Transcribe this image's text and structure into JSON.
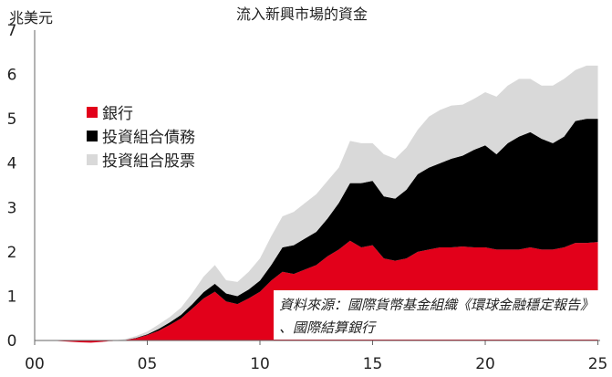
{
  "chart_data": {
    "type": "area",
    "stacked": true,
    "title": "流入新興市場的資金",
    "ylabel": "兆美元",
    "xlabel": "",
    "xlim": [
      2000,
      2025.1
    ],
    "ylim": [
      0,
      7
    ],
    "xticks": [
      2000,
      2005,
      2010,
      2015,
      2020,
      2025
    ],
    "xtick_labels": [
      "00",
      "05",
      "10",
      "15",
      "20",
      "25"
    ],
    "yticks": [
      0,
      1,
      2,
      3,
      4,
      5,
      6,
      7
    ],
    "grid": false,
    "legend_position": "center-left",
    "x": [
      2000,
      2001,
      2002,
      2002.5,
      2003,
      2003.5,
      2004,
      2004.5,
      2005,
      2005.5,
      2006,
      2006.5,
      2007,
      2007.5,
      2008,
      2008.5,
      2009,
      2009.5,
      2010,
      2010.5,
      2011,
      2011.5,
      2012,
      2012.5,
      2013,
      2013.5,
      2014,
      2014.5,
      2015,
      2015.5,
      2016,
      2016.5,
      2017,
      2017.5,
      2018,
      2018.5,
      2019,
      2019.5,
      2020,
      2020.5,
      2021,
      2021.5,
      2022,
      2022.5,
      2023,
      2023.5,
      2024,
      2024.5,
      2025
    ],
    "series": [
      {
        "name": "銀行",
        "color": "#e2001a",
        "values": [
          0.0,
          -0.01,
          -0.04,
          -0.05,
          -0.03,
          -0.01,
          0.01,
          0.05,
          0.12,
          0.22,
          0.35,
          0.5,
          0.72,
          0.95,
          1.1,
          0.88,
          0.82,
          0.95,
          1.1,
          1.35,
          1.55,
          1.5,
          1.6,
          1.7,
          1.9,
          2.05,
          2.25,
          2.1,
          2.15,
          1.85,
          1.8,
          1.85,
          2.0,
          2.05,
          2.1,
          2.1,
          2.12,
          2.1,
          2.1,
          2.05,
          2.05,
          2.05,
          2.1,
          2.05,
          2.05,
          2.1,
          2.2,
          2.2,
          2.22
        ]
      },
      {
        "name": "投資組合債務",
        "color": "#000000",
        "values": [
          0.0,
          0.0,
          0.0,
          0.0,
          0.0,
          0.0,
          0.0,
          0.01,
          0.02,
          0.04,
          0.06,
          0.08,
          0.1,
          0.14,
          0.18,
          0.18,
          0.18,
          0.2,
          0.25,
          0.35,
          0.55,
          0.65,
          0.7,
          0.75,
          0.85,
          1.05,
          1.3,
          1.45,
          1.45,
          1.4,
          1.4,
          1.55,
          1.75,
          1.85,
          1.9,
          2.0,
          2.05,
          2.2,
          2.3,
          2.15,
          2.4,
          2.55,
          2.6,
          2.5,
          2.4,
          2.5,
          2.75,
          2.8,
          2.78
        ]
      },
      {
        "name": "投資組合股票",
        "color": "#d9d9d9",
        "values": [
          0.0,
          0.0,
          0.0,
          0.0,
          0.0,
          0.01,
          0.02,
          0.04,
          0.06,
          0.1,
          0.12,
          0.16,
          0.25,
          0.35,
          0.42,
          0.3,
          0.32,
          0.4,
          0.5,
          0.65,
          0.7,
          0.75,
          0.8,
          0.85,
          0.85,
          0.8,
          0.95,
          0.9,
          0.85,
          0.95,
          0.9,
          0.95,
          1.0,
          1.15,
          1.2,
          1.2,
          1.15,
          1.15,
          1.2,
          1.3,
          1.3,
          1.3,
          1.2,
          1.2,
          1.3,
          1.3,
          1.15,
          1.2,
          1.2
        ]
      }
    ],
    "annotation": {
      "line1": "資料來源：國際貨幣基金組織《環球金融穩定報告》",
      "line2": "、國際結算銀行"
    }
  }
}
